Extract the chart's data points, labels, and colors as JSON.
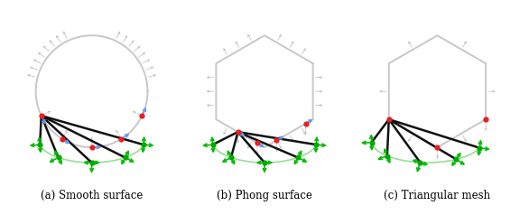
{
  "panel_labels": [
    "(a) Smooth surface",
    "(b) Phong surface",
    "(c) Triangular mesh"
  ],
  "background_color": "#ffffff",
  "colors": {
    "surface": "#c8c8c8",
    "normal_arrow": "#c0c0c0",
    "red_dot": "#e82020",
    "green_dot": "#00aa00",
    "blue_arrow": "#6699ee",
    "black_line": "#111111",
    "green_curve": "#99dd99",
    "green_arrow": "#00bb00",
    "grey_dashed": "#c0c0c0"
  }
}
